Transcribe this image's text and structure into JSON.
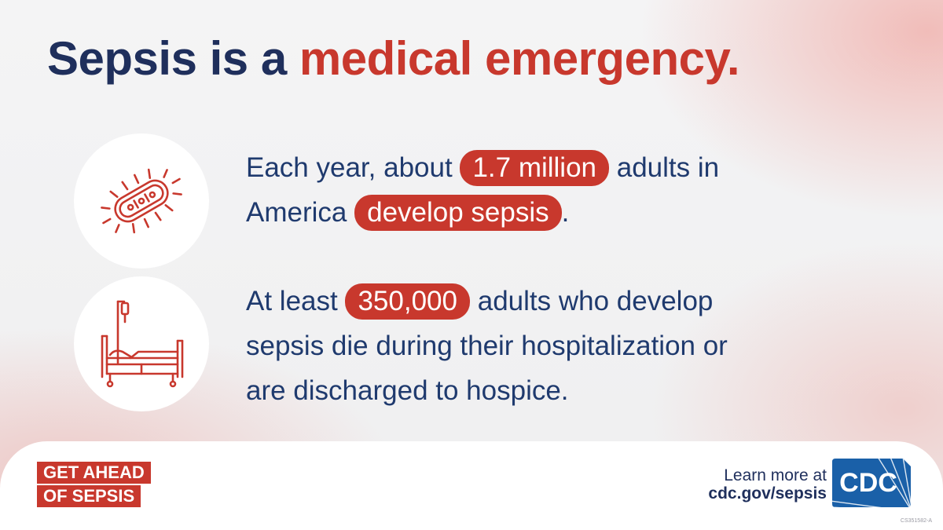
{
  "headline": {
    "part1": "Sepsis is a",
    "part2": "medical emergency.",
    "colors": {
      "navy": "#1f2f5c",
      "red": "#c8382d"
    }
  },
  "stats": [
    {
      "icon": "bacteria-icon",
      "lines": [
        {
          "before": "Each year, about",
          "highlight": "1.7 million",
          "after": "adults in"
        },
        {
          "before": "America",
          "highlight": "develop sepsis",
          "after": "."
        }
      ]
    },
    {
      "icon": "hospital-bed-icon",
      "lines": [
        {
          "before": "At least",
          "highlight": "350,000",
          "after": "adults who develop"
        },
        {
          "text": "sepsis die during their hospitalization or"
        },
        {
          "text": "are discharged to hospice."
        }
      ]
    }
  ],
  "footer": {
    "campaign": {
      "line1": "GET AHEAD",
      "line2": "OF SEPSIS"
    },
    "learn_more": "Learn more at",
    "url": "cdc.gov/sepsis",
    "logo_text": "CDC",
    "code": "CS351582-A"
  }
}
